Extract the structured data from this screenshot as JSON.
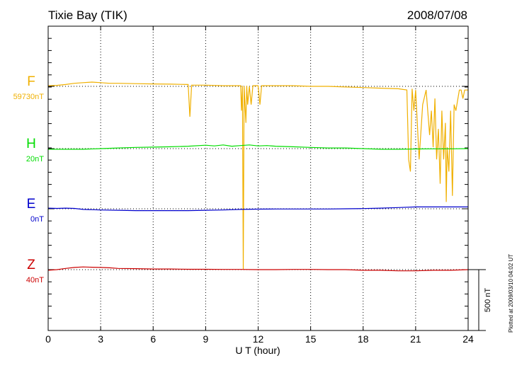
{
  "chart_data": {
    "type": "line",
    "title": "Tixie Bay (TIK)",
    "date": "2008/07/08",
    "xlabel": "U T (hour)",
    "xlim": [
      0,
      24
    ],
    "xticks": [
      "0",
      "3",
      "6",
      "9",
      "12",
      "15",
      "18",
      "21",
      "24"
    ],
    "grid": "dotted vertical every 3 hours",
    "scale_bar": {
      "value_nT": 500,
      "label": "500 nT"
    },
    "plotted_note": "Plotted at 2009/03/10 04:02 UT",
    "series": [
      {
        "name": "F",
        "baseline_label": "59730nT",
        "color": "#f0b000",
        "x": [
          0,
          0.5,
          1,
          1.5,
          2,
          2.5,
          3,
          3.5,
          4,
          5,
          6,
          7,
          8,
          8.1,
          8.2,
          9,
          10,
          11,
          11.05,
          11.1,
          11.15,
          11.2,
          11.3,
          11.35,
          11.4,
          11.5,
          11.6,
          11.7,
          11.8,
          11.9,
          12,
          12.1,
          12.2,
          12.5,
          13,
          14,
          15,
          16,
          17,
          18,
          19,
          20,
          20.5,
          20.6,
          20.7,
          20.8,
          20.9,
          21,
          21.2,
          21.4,
          21.6,
          21.8,
          21.9,
          22,
          22.1,
          22.2,
          22.3,
          22.4,
          22.5,
          22.6,
          22.7,
          22.75,
          22.8,
          22.9,
          23,
          23.1,
          23.2,
          23.3,
          23.5,
          23.6,
          23.7,
          23.8,
          24
        ],
        "y_nT": [
          5,
          8,
          15,
          25,
          30,
          35,
          30,
          25,
          25,
          22,
          20,
          18,
          15,
          -250,
          10,
          10,
          5,
          5,
          -200,
          5,
          -1500,
          0,
          -300,
          5,
          -150,
          0,
          -150,
          5,
          5,
          5,
          5,
          -150,
          5,
          5,
          5,
          5,
          0,
          0,
          -5,
          -10,
          -15,
          -20,
          -30,
          -600,
          -700,
          -20,
          -200,
          -30,
          -600,
          -150,
          -30,
          -400,
          -200,
          -500,
          -100,
          -600,
          -350,
          -800,
          -200,
          -600,
          -300,
          -950,
          -500,
          -700,
          -200,
          -900,
          -150,
          -200,
          -30,
          -30,
          -100,
          -30,
          -30
        ]
      },
      {
        "name": "H",
        "baseline_label": "20nT",
        "color": "#00dd00",
        "x": [
          0,
          1,
          2,
          3,
          4,
          5,
          6,
          7,
          8,
          9,
          9.5,
          10,
          10.5,
          11,
          11.5,
          12,
          12.5,
          13,
          14,
          15,
          16,
          17,
          18,
          19,
          20,
          21,
          22,
          23,
          24
        ],
        "y_nT": [
          -5,
          -5,
          -5,
          0,
          5,
          10,
          12,
          15,
          20,
          28,
          22,
          30,
          20,
          25,
          30,
          22,
          25,
          20,
          15,
          10,
          5,
          5,
          0,
          -5,
          -5,
          -3,
          -2,
          -2,
          0
        ]
      },
      {
        "name": "E",
        "baseline_label": "0nT",
        "color": "#0000cc",
        "x": [
          0,
          0.5,
          1,
          1.5,
          2,
          3,
          4,
          5,
          6,
          7,
          8,
          9,
          10,
          11,
          12,
          13,
          14,
          15,
          16,
          17,
          18,
          19,
          20,
          21,
          22,
          23,
          24
        ],
        "y_nT": [
          5,
          3,
          5,
          3,
          -5,
          -10,
          -12,
          -15,
          -15,
          -15,
          -15,
          -12,
          -10,
          -5,
          -3,
          -2,
          -2,
          -2,
          -2,
          0,
          2,
          5,
          10,
          15,
          15,
          15,
          15
        ]
      },
      {
        "name": "Z",
        "baseline_label": "40nT",
        "color": "#cc0000",
        "x": [
          0,
          0.5,
          1,
          1.5,
          2,
          2.5,
          3,
          3.5,
          4,
          5,
          6,
          7,
          8,
          9,
          10,
          11,
          12,
          13,
          14,
          15,
          16,
          17,
          18,
          19,
          20,
          21,
          22,
          23,
          24
        ],
        "y_nT": [
          -5,
          0,
          10,
          18,
          22,
          20,
          18,
          15,
          10,
          8,
          5,
          5,
          3,
          3,
          2,
          2,
          0,
          0,
          2,
          2,
          0,
          0,
          -5,
          -5,
          -10,
          -10,
          -5,
          -5,
          0
        ]
      }
    ]
  }
}
